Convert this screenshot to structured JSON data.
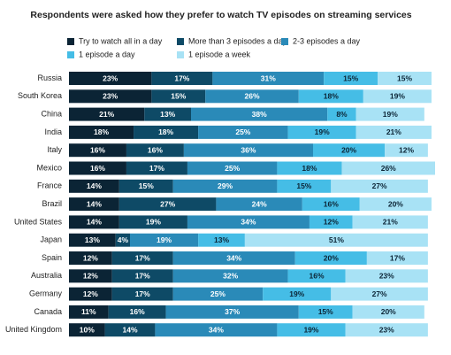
{
  "chart_data": {
    "type": "stacked-bar-horizontal",
    "title": "Respondents were asked how they prefer to watch TV episodes on streaming services",
    "categories": [
      "Russia",
      "South Korea",
      "China",
      "India",
      "Italy",
      "Mexico",
      "France",
      "Brazil",
      "United States",
      "Japan",
      "Spain",
      "Australia",
      "Germany",
      "Canada",
      "United Kingdom"
    ],
    "series": [
      {
        "name": "Try to watch all in a day",
        "color": "#0b2435",
        "values": [
          23,
          23,
          21,
          18,
          16,
          16,
          14,
          14,
          14,
          13,
          12,
          12,
          12,
          11,
          10
        ],
        "value_labels": [
          "23%",
          "23%",
          "21%",
          "18%",
          "16%",
          "16%",
          "14%",
          "14%",
          "14%",
          "13%",
          "12%",
          "12%",
          "12%",
          "11%",
          "10%"
        ]
      },
      {
        "name": "More than 3 episodes a day",
        "color": "#0e4a66",
        "values": [
          17,
          15,
          13,
          18,
          16,
          17,
          15,
          27,
          19,
          4,
          17,
          17,
          17,
          16,
          14
        ],
        "value_labels": [
          "17%",
          "15%",
          "13%",
          "18%",
          "16%",
          "17%",
          "15%",
          "27%",
          "19%",
          "4%",
          "17%",
          "17%",
          "17%",
          "16%",
          "14%"
        ]
      },
      {
        "name": "2-3 episodes a day",
        "color": "#2a8ab8",
        "values": [
          31,
          26,
          38,
          25,
          36,
          25,
          29,
          24,
          34,
          19,
          34,
          32,
          25,
          37,
          34
        ],
        "value_labels": [
          "31%",
          "26%",
          "38%",
          "25%",
          "36%",
          "25%",
          "29%",
          "24%",
          "34%",
          "19%",
          "34%",
          "32%",
          "25%",
          "37%",
          "34%"
        ]
      },
      {
        "name": "1 episode a day",
        "color": "#45bde6",
        "values": [
          15,
          18,
          8,
          19,
          20,
          18,
          15,
          16,
          12,
          13,
          20,
          16,
          19,
          15,
          19
        ],
        "value_labels": [
          "15%",
          "18%",
          "8%",
          "19%",
          "20%",
          "18%",
          "15%",
          "16%",
          "12%",
          "13%",
          "20%",
          "16%",
          "19%",
          "15%",
          "19%"
        ]
      },
      {
        "name": "1 episode a week",
        "color": "#a8e2f5",
        "values": [
          15,
          19,
          19,
          21,
          12,
          26,
          27,
          20,
          21,
          51,
          17,
          23,
          27,
          20,
          23
        ],
        "value_labels": [
          "15%",
          "19%",
          "19%",
          "21%",
          "12%",
          "26%",
          "27%",
          "20%",
          "21%",
          "51%",
          "17%",
          "23%",
          "27%",
          "20%",
          "23%"
        ]
      }
    ]
  }
}
